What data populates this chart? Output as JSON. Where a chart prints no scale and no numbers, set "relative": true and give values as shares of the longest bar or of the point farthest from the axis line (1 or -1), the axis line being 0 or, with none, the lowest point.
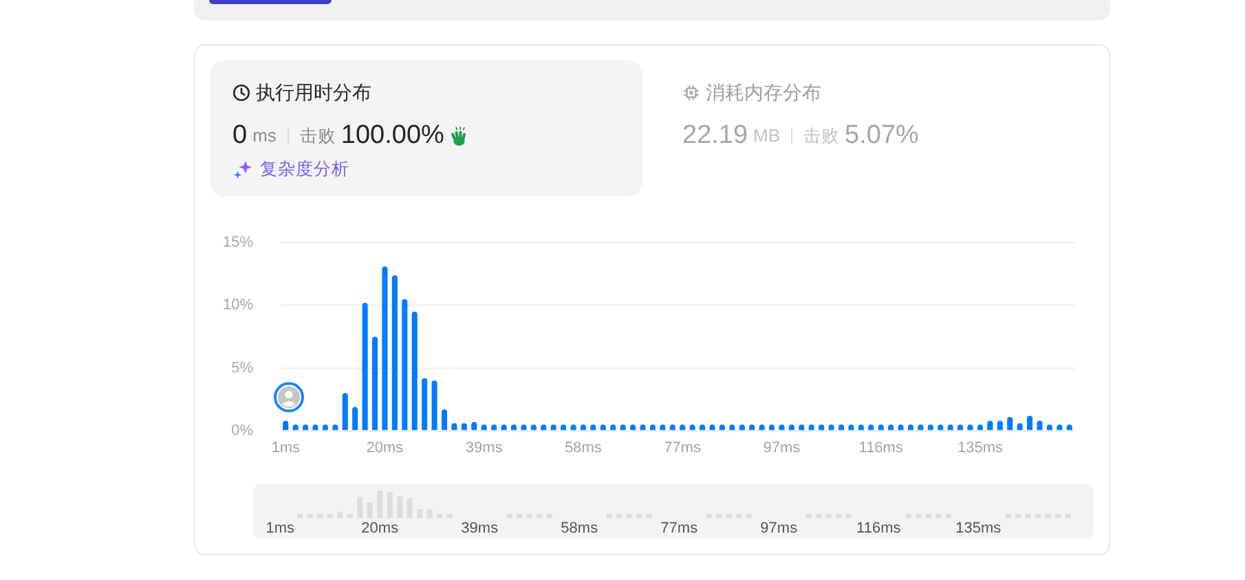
{
  "chart_data": [
    {
      "type": "other",
      "title": "执行用时分布",
      "annotations": [
        "0",
        "ms",
        "击败",
        "100.00%",
        "复杂度分析"
      ]
    },
    {
      "type": "other",
      "title": "消耗内存分布",
      "annotations": [
        "22.19",
        "MB",
        "击败",
        "5.07%"
      ]
    },
    {
      "type": "bar",
      "categories": [
        "1ms",
        null,
        null,
        null,
        null,
        null,
        null,
        null,
        null,
        null,
        "20ms",
        null,
        null,
        null,
        null,
        null,
        null,
        null,
        null,
        null,
        "39ms",
        null,
        null,
        null,
        null,
        null,
        null,
        null,
        null,
        null,
        "58ms",
        null,
        null,
        null,
        null,
        null,
        null,
        null,
        null,
        null,
        "77ms",
        null,
        null,
        null,
        null,
        null,
        null,
        null,
        null,
        null,
        "97ms",
        null,
        null,
        null,
        null,
        null,
        null,
        null,
        null,
        null,
        "116ms",
        null,
        null,
        null,
        null,
        null,
        null,
        null,
        null,
        null,
        "135ms",
        null,
        null,
        null,
        null,
        null,
        null,
        null,
        null,
        null
      ],
      "values": [
        0.8,
        0.5,
        0.5,
        0.5,
        0.5,
        0.5,
        3.0,
        1.9,
        10.2,
        7.5,
        13.1,
        12.4,
        10.5,
        9.5,
        4.2,
        4.0,
        1.7,
        0.6,
        0.6,
        0.7,
        0.5,
        0.5,
        0.5,
        0.5,
        0.5,
        0.5,
        0.5,
        0.5,
        0.5,
        0.5,
        0.5,
        0.5,
        0.5,
        0.5,
        0.5,
        0.5,
        0.5,
        0.5,
        0.5,
        0.5,
        0.5,
        0.5,
        0.5,
        0.5,
        0.5,
        0.5,
        0.5,
        0.5,
        0.5,
        0.5,
        0.5,
        0.5,
        0.5,
        0.5,
        0.5,
        0.5,
        0.5,
        0.5,
        0.5,
        0.5,
        0.5,
        0.5,
        0.5,
        0.5,
        0.5,
        0.5,
        0.5,
        0.5,
        0.5,
        0.5,
        0.5,
        0.8,
        0.8,
        1.1,
        0.6,
        1.2,
        0.8,
        0.5,
        0.5,
        0.5
      ],
      "color": "#007aff",
      "ylim": [
        0,
        15
      ],
      "yticks": [
        {
          "value": 0,
          "label": "0%"
        },
        {
          "value": 5,
          "label": "5%"
        },
        {
          "value": 10,
          "label": "10%"
        },
        {
          "value": 15,
          "label": "15%"
        }
      ],
      "grid": "y"
    },
    {
      "type": "bar",
      "relative": true,
      "categories": [
        "1ms",
        null,
        null,
        null,
        null,
        null,
        null,
        null,
        null,
        null,
        "20ms",
        null,
        null,
        null,
        null,
        null,
        null,
        null,
        null,
        null,
        "39ms",
        null,
        null,
        null,
        null,
        null,
        null,
        null,
        null,
        null,
        "58ms",
        null,
        null,
        null,
        null,
        null,
        null,
        null,
        null,
        null,
        "77ms",
        null,
        null,
        null,
        null,
        null,
        null,
        null,
        null,
        null,
        "97ms",
        null,
        null,
        null,
        null,
        null,
        null,
        null,
        null,
        null,
        "116ms",
        null,
        null,
        null,
        null,
        null,
        null,
        null,
        null,
        null,
        "135ms",
        null,
        null,
        null,
        null,
        null,
        null,
        null,
        null,
        null
      ],
      "values": [
        null,
        null,
        0.15,
        0.15,
        0.15,
        0.15,
        0.23,
        0.15,
        0.78,
        0.57,
        1,
        0.95,
        0.8,
        0.73,
        0.32,
        0.31,
        0.15,
        0.15,
        null,
        null,
        null,
        null,
        null,
        0.15,
        0.15,
        0.15,
        0.15,
        0.15,
        null,
        null,
        null,
        null,
        null,
        0.15,
        0.15,
        0.15,
        0.15,
        0.15,
        null,
        null,
        null,
        null,
        null,
        0.15,
        0.15,
        0.15,
        0.15,
        0.15,
        null,
        null,
        null,
        null,
        null,
        0.15,
        0.15,
        0.15,
        0.15,
        0.15,
        null,
        null,
        null,
        null,
        null,
        0.15,
        0.15,
        0.15,
        0.15,
        0.15,
        null,
        null,
        null,
        null,
        null,
        0.15,
        0.15,
        0.15,
        0.15,
        0.15,
        0.15,
        0.15
      ],
      "color": "#dddddd"
    }
  ]
}
